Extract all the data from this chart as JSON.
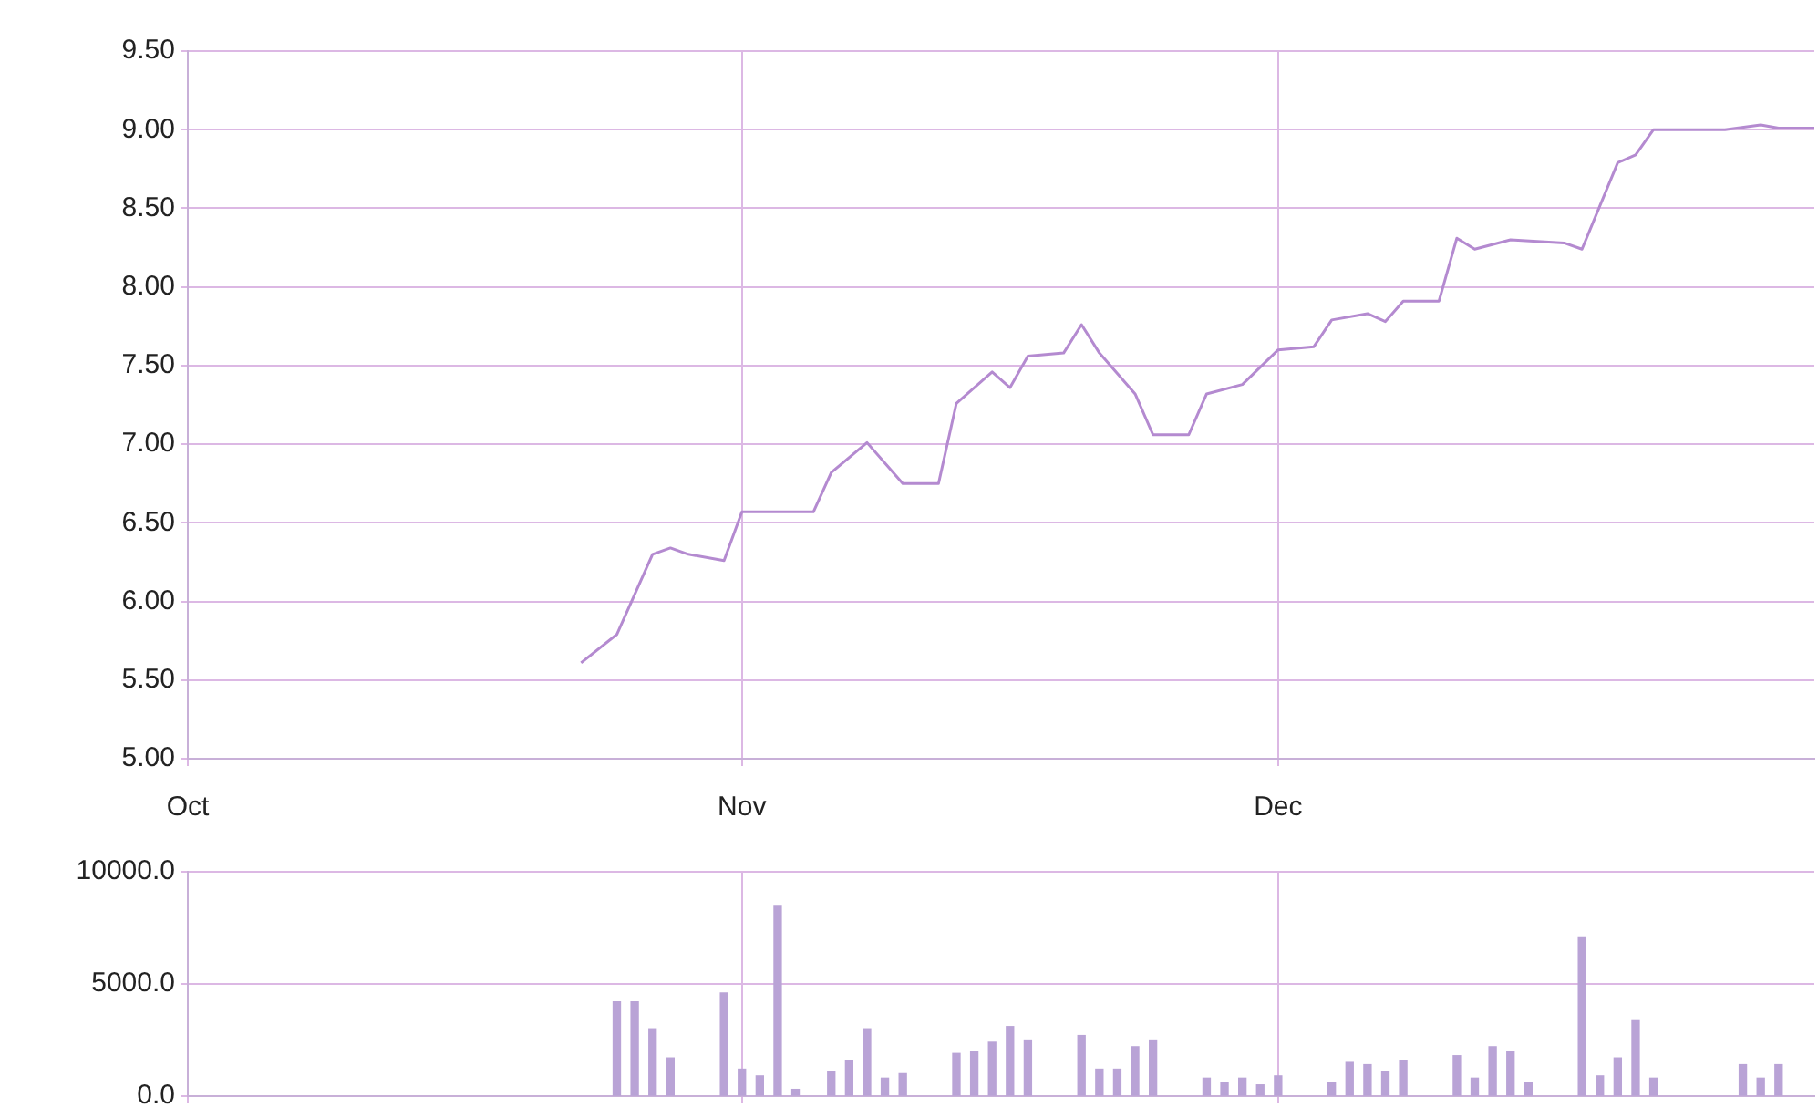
{
  "chart_data": [
    {
      "type": "line",
      "color": "#b48ad0",
      "x": [
        "--10-23",
        "--10-25",
        "--10-27",
        "--10-28",
        "--10-29",
        "--10-31",
        "--11-01",
        "--11-05",
        "--11-06",
        "--11-08",
        "--11-10",
        "--11-12",
        "--11-13",
        "--11-15",
        "--11-16",
        "--11-17",
        "--11-19",
        "--11-20",
        "--11-21",
        "--11-23",
        "--11-24",
        "--11-26",
        "--11-27",
        "--11-29",
        "--12-01",
        "--12-03",
        "--12-04",
        "--12-06",
        "--12-07",
        "--12-08",
        "--12-10",
        "--12-11",
        "--12-12",
        "--12-14",
        "--12-17",
        "--12-18",
        "--12-20",
        "--12-21",
        "--12-22",
        "--12-26",
        "--12-28",
        "--12-29",
        "--12-31"
      ],
      "values": [
        5.61,
        5.79,
        6.3,
        6.34,
        6.3,
        6.26,
        6.57,
        6.57,
        6.82,
        7.01,
        6.75,
        6.75,
        7.26,
        7.46,
        7.36,
        7.56,
        7.58,
        7.76,
        7.58,
        7.32,
        7.06,
        7.06,
        7.32,
        7.38,
        7.6,
        7.62,
        7.79,
        7.83,
        7.78,
        7.91,
        7.91,
        8.31,
        8.24,
        8.3,
        8.28,
        8.24,
        8.79,
        8.84,
        9.0,
        9.0,
        9.03,
        9.01,
        9.01
      ],
      "xlim": [
        "--10-01",
        "--12-31"
      ],
      "xticks": [
        {
          "value": "--10-01",
          "label": "Oct"
        },
        {
          "value": "--11-01",
          "label": "Nov"
        },
        {
          "value": "--12-01",
          "label": "Dec"
        }
      ],
      "ylim": [
        5,
        9.5
      ],
      "yticks": [
        {
          "value": 5,
          "label": "5.00"
        },
        {
          "value": 5.5,
          "label": "5.50"
        },
        {
          "value": 6,
          "label": "6.00"
        },
        {
          "value": 6.5,
          "label": "6.50"
        },
        {
          "value": 7,
          "label": "7.00"
        },
        {
          "value": 7.5,
          "label": "7.50"
        },
        {
          "value": 8,
          "label": "8.00"
        },
        {
          "value": 8.5,
          "label": "8.50"
        },
        {
          "value": 9,
          "label": "9.00"
        },
        {
          "value": 9.5,
          "label": "9.50"
        }
      ],
      "grid": true
    },
    {
      "type": "bar",
      "color": "#b9a3d6",
      "x": [
        "--10-25",
        "--10-26",
        "--10-27",
        "--10-28",
        "--10-31",
        "--11-01",
        "--11-02",
        "--11-03",
        "--11-04",
        "--11-06",
        "--11-07",
        "--11-08",
        "--11-09",
        "--11-10",
        "--11-13",
        "--11-14",
        "--11-15",
        "--11-16",
        "--11-17",
        "--11-20",
        "--11-21",
        "--11-22",
        "--11-23",
        "--11-24",
        "--11-27",
        "--11-28",
        "--11-29",
        "--11-30",
        "--12-01",
        "--12-04",
        "--12-05",
        "--12-06",
        "--12-07",
        "--12-08",
        "--12-11",
        "--12-12",
        "--12-13",
        "--12-14",
        "--12-15",
        "--12-18",
        "--12-19",
        "--12-20",
        "--12-21",
        "--12-22",
        "--12-27",
        "--12-28",
        "--12-29"
      ],
      "values": [
        4200,
        4200,
        3000,
        1700,
        4600,
        1200,
        900,
        8500,
        300,
        1100,
        1600,
        3000,
        800,
        1000,
        1900,
        2000,
        2400,
        3100,
        2500,
        2700,
        1200,
        1200,
        2200,
        2500,
        800,
        600,
        800,
        500,
        900,
        600,
        1500,
        1400,
        1100,
        1600,
        1800,
        800,
        2200,
        2000,
        600,
        7100,
        900,
        1700,
        3400,
        800,
        1400,
        800,
        1400
      ],
      "xlim": [
        "--10-01",
        "--12-31"
      ],
      "xticks": [
        {
          "value": "--10-01",
          "label": null
        },
        {
          "value": "--11-01",
          "label": null
        },
        {
          "value": "--12-01",
          "label": null
        }
      ],
      "ylim": [
        0,
        10000
      ],
      "yticks": [
        {
          "value": 0,
          "label": "0.0"
        },
        {
          "value": 5000,
          "label": "5000.0"
        },
        {
          "value": 10000,
          "label": "10000.0"
        }
      ],
      "tick_labels": "y",
      "grid": true
    }
  ]
}
